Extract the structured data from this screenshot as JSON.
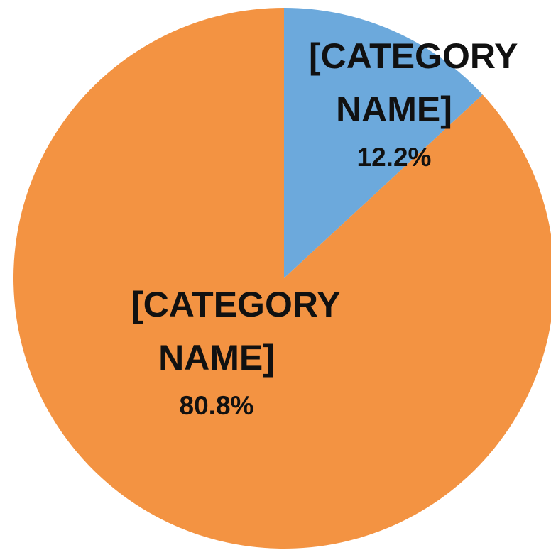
{
  "chart_data": {
    "type": "pie",
    "categories": [
      "[CATEGORY NAME]",
      "[CATEGORY NAME]"
    ],
    "values": [
      12.2,
      80.8
    ],
    "value_labels": [
      "12.2%",
      "80.8%"
    ],
    "colors": [
      "#6ca9dc",
      "#f39342"
    ]
  }
}
